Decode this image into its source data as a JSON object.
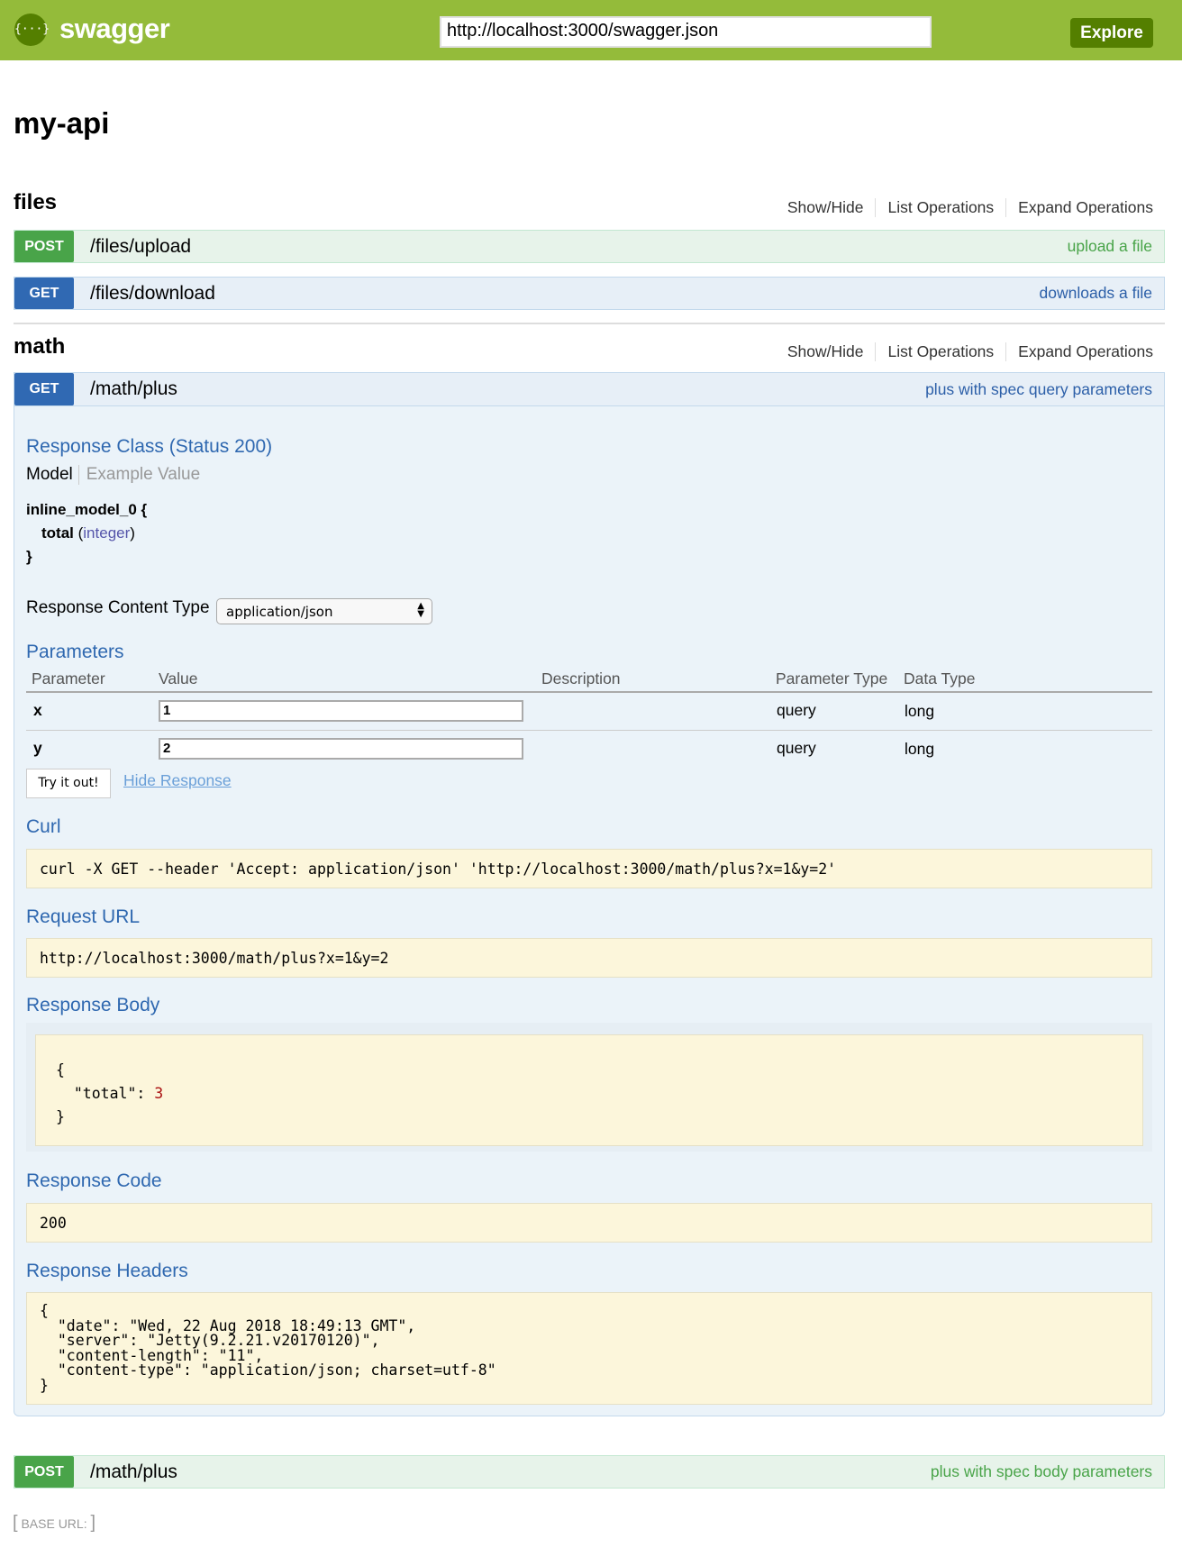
{
  "header": {
    "logo_text": "swagger",
    "logo_icon": "braces-icon",
    "url": "http://localhost:3000/swagger.json",
    "explore_label": "Explore",
    "color": "#94bb3a"
  },
  "api_title": "my-api",
  "section_links": {
    "show_hide": "Show/Hide",
    "list": "List Operations",
    "expand": "Expand Operations"
  },
  "sections": [
    {
      "name": "files",
      "operations": [
        {
          "method": "POST",
          "path": "/files/upload",
          "summary": "upload a file"
        },
        {
          "method": "GET",
          "path": "/files/download",
          "summary": "downloads a file"
        }
      ]
    },
    {
      "name": "math",
      "operations": [
        {
          "method": "GET",
          "path": "/math/plus",
          "summary": "plus with spec query parameters"
        },
        {
          "method": "POST",
          "path": "/math/plus",
          "summary": "plus with spec body parameters"
        }
      ]
    }
  ],
  "expanded": {
    "response_class_title": "Response Class (Status 200)",
    "model_tab": "Model",
    "example_tab": "Example Value",
    "model_name": "inline_model_0 {",
    "model_field": "total",
    "model_type": "integer",
    "model_close": "}",
    "content_type_label": "Response Content Type",
    "content_type_value": "application/json",
    "parameters_title": "Parameters",
    "param_headers": [
      "Parameter",
      "Value",
      "Description",
      "Parameter Type",
      "Data Type"
    ],
    "params": [
      {
        "name": "x",
        "value": "1",
        "description": "",
        "type": "query",
        "data_type": "long"
      },
      {
        "name": "y",
        "value": "2",
        "description": "",
        "type": "query",
        "data_type": "long"
      }
    ],
    "try_label": "Try it out!",
    "hide_label": "Hide Response",
    "curl_title": "Curl",
    "curl": "curl -X GET --header 'Accept: application/json' 'http://localhost:3000/math/plus?x=1&y=2'",
    "request_url_title": "Request URL",
    "request_url": "http://localhost:3000/math/plus?x=1&y=2",
    "response_body_title": "Response Body",
    "body_key": "\"total\"",
    "body_value": "3",
    "response_code_title": "Response Code",
    "response_code": "200",
    "response_headers_title": "Response Headers",
    "response_headers": "{\n  \"date\": \"Wed, 22 Aug 2018 18:49:13 GMT\",\n  \"server\": \"Jetty(9.2.21.v20170120)\",\n  \"content-length\": \"11\",\n  \"content-type\": \"application/json; charset=utf-8\"\n}"
  },
  "footer": {
    "base_url_label": "BASE URL",
    "base_url_value": ""
  }
}
